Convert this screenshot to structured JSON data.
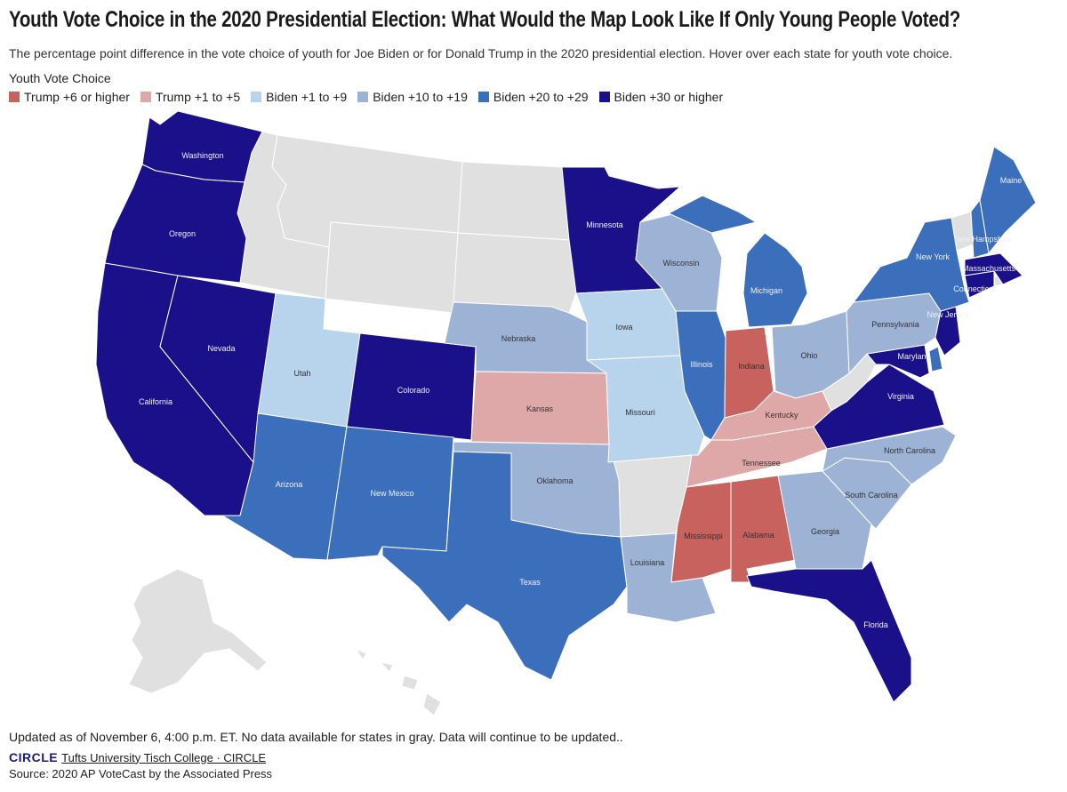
{
  "title": "Youth Vote Choice in the 2020 Presidential Election: What Would the Map Look Like If Only Young People Voted?",
  "subtitle": "The percentage point difference in the vote choice of youth for Joe Biden or for Donald Trump in the 2020 presidential election. Hover over each state for youth vote choice.",
  "legend": {
    "title": "Youth Vote Choice",
    "items": [
      {
        "label": "Trump +6 or higher",
        "color": "#c8625f"
      },
      {
        "label": "Trump +1 to +5",
        "color": "#dfa8a8"
      },
      {
        "label": "Biden +1 to +9",
        "color": "#b8d3ec"
      },
      {
        "label": "Biden +10 to +19",
        "color": "#9cb3d6"
      },
      {
        "label": "Biden +20 to +29",
        "color": "#3b6fbb"
      },
      {
        "label": "Biden +30 or higher",
        "color": "#1a108a"
      }
    ]
  },
  "no_data_color": "#e0e0e0",
  "states": [
    {
      "name": "Washington",
      "category": "Biden +30 or higher"
    },
    {
      "name": "Oregon",
      "category": "Biden +30 or higher"
    },
    {
      "name": "California",
      "category": "Biden +30 or higher"
    },
    {
      "name": "Nevada",
      "category": "Biden +30 or higher"
    },
    {
      "name": "Colorado",
      "category": "Biden +30 or higher"
    },
    {
      "name": "Minnesota",
      "category": "Biden +30 or higher"
    },
    {
      "name": "Florida",
      "category": "Biden +30 or higher"
    },
    {
      "name": "Virginia",
      "category": "Biden +30 or higher"
    },
    {
      "name": "Maryland",
      "category": "Biden +30 or higher"
    },
    {
      "name": "New Jersey",
      "category": "Biden +30 or higher"
    },
    {
      "name": "Connecticut",
      "category": "Biden +30 or higher"
    },
    {
      "name": "Massachusetts",
      "category": "Biden +30 or higher"
    },
    {
      "name": "Arizona",
      "category": "Biden +20 to +29"
    },
    {
      "name": "New Mexico",
      "category": "Biden +20 to +29"
    },
    {
      "name": "Texas",
      "category": "Biden +20 to +29"
    },
    {
      "name": "Illinois",
      "category": "Biden +20 to +29"
    },
    {
      "name": "Michigan",
      "category": "Biden +20 to +29"
    },
    {
      "name": "New York",
      "category": "Biden +20 to +29"
    },
    {
      "name": "Maine",
      "category": "Biden +20 to +29"
    },
    {
      "name": "New Hampshire",
      "category": "Biden +20 to +29"
    },
    {
      "name": "Delaware",
      "category": "Biden +20 to +29"
    },
    {
      "name": "Nebraska",
      "category": "Biden +10 to +19"
    },
    {
      "name": "Wisconsin",
      "category": "Biden +10 to +19"
    },
    {
      "name": "Oklahoma",
      "category": "Biden +10 to +19"
    },
    {
      "name": "Louisiana",
      "category": "Biden +10 to +19"
    },
    {
      "name": "Ohio",
      "category": "Biden +10 to +19"
    },
    {
      "name": "Pennsylvania",
      "category": "Biden +10 to +19"
    },
    {
      "name": "Georgia",
      "category": "Biden +10 to +19"
    },
    {
      "name": "South Carolina",
      "category": "Biden +10 to +19"
    },
    {
      "name": "North Carolina",
      "category": "Biden +10 to +19"
    },
    {
      "name": "Utah",
      "category": "Biden +1 to +9"
    },
    {
      "name": "Iowa",
      "category": "Biden +1 to +9"
    },
    {
      "name": "Missouri",
      "category": "Biden +1 to +9"
    },
    {
      "name": "Kansas",
      "category": "Trump +1 to +5"
    },
    {
      "name": "Kentucky",
      "category": "Trump +1 to +5"
    },
    {
      "name": "Tennessee",
      "category": "Trump +1 to +5"
    },
    {
      "name": "Indiana",
      "category": "Trump +6 or higher"
    },
    {
      "name": "Mississippi",
      "category": "Trump +6 or higher"
    },
    {
      "name": "Alabama",
      "category": "Trump +6 or higher"
    }
  ],
  "footer": {
    "note": "Updated as of November 6, 4:00 p.m. ET. No data available for states in gray. Data will continue to be updated..",
    "logo_main": "CIRCLE",
    "link": "Tufts University Tisch College · CIRCLE",
    "source": "Source: 2020 AP VoteCast by the Associated Press"
  }
}
